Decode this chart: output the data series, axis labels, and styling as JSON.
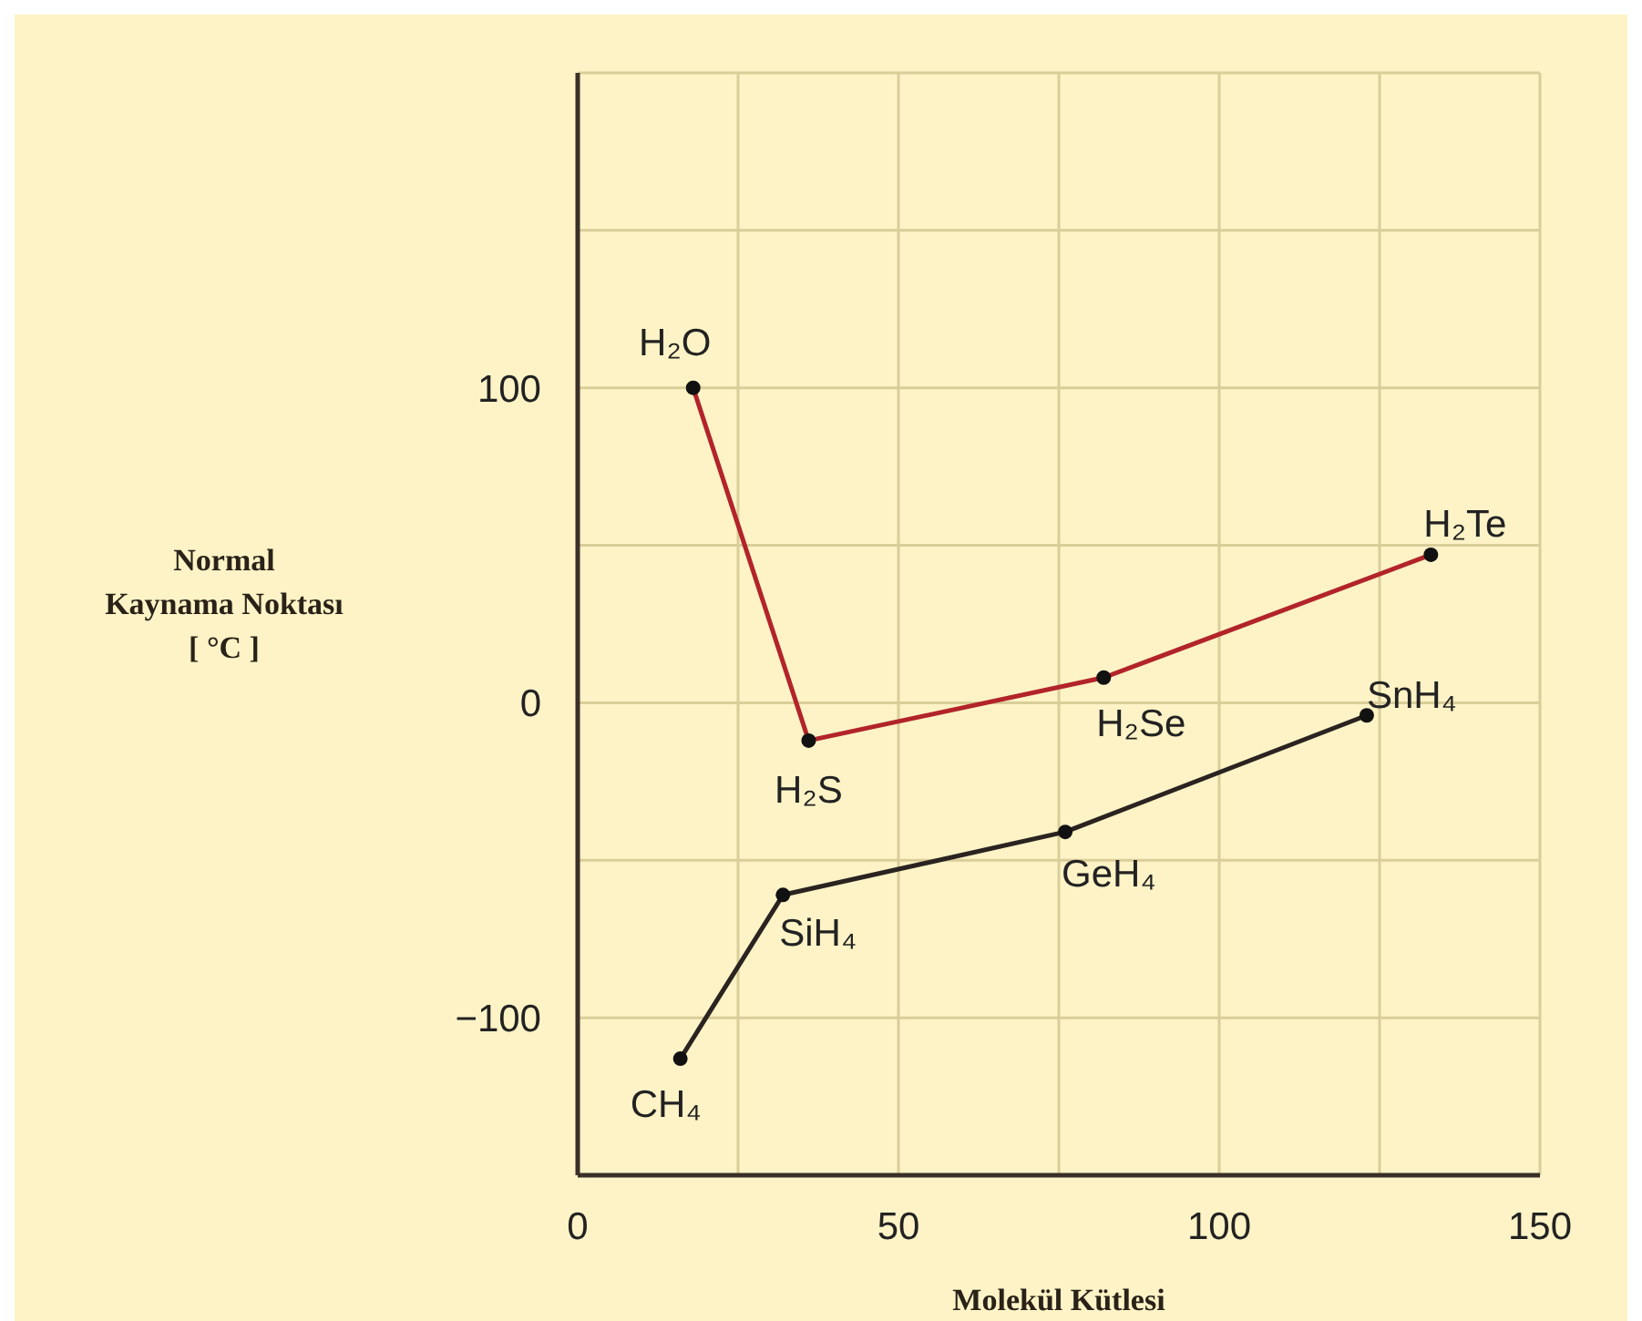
{
  "chart_data": {
    "type": "line",
    "xlabel": "Molekül Kütlesi",
    "ylabel": "Normal\nKaynama Noktası\n[ °C ]",
    "series": [
      {
        "color": "#b2242a",
        "x": [
          18,
          36,
          82,
          133
        ],
        "values": [
          100,
          -12,
          8,
          47
        ]
      },
      {
        "color": "#2a2320",
        "x": [
          16,
          32,
          76,
          123
        ],
        "values": [
          -113,
          -61,
          -41,
          -4
        ]
      }
    ],
    "xlim": [
      0,
      150
    ],
    "xticks": [
      0,
      {
        "value": 25,
        "label": null
      },
      50,
      {
        "value": 75,
        "label": null
      },
      100,
      {
        "value": 125,
        "label": null
      },
      150
    ],
    "ylim": [
      -150,
      200
    ],
    "yticks": [
      {
        "value": -150,
        "label": null
      },
      -100,
      {
        "value": -50,
        "label": null
      },
      0,
      {
        "value": 50,
        "label": null
      },
      100,
      {
        "value": 150,
        "label": null
      },
      {
        "value": 200,
        "label": null
      }
    ],
    "grid": true,
    "marker": "circle",
    "line_style": "solid",
    "annotations": [
      {
        "text": "H₂O",
        "x": 18,
        "y": 100
      },
      {
        "text": "H₂S",
        "x": 36,
        "y": -12
      },
      {
        "text": "H₂Se",
        "x": 82,
        "y": 8
      },
      {
        "text": "H₂Te",
        "x": 133,
        "y": 47
      },
      {
        "text": "CH₄",
        "x": 16,
        "y": -113
      },
      {
        "text": "SiH₄",
        "x": 32,
        "y": -61
      },
      {
        "text": "GeH₄",
        "x": 76,
        "y": -41
      },
      {
        "text": "SnH₄",
        "x": 123,
        "y": -4
      }
    ]
  }
}
